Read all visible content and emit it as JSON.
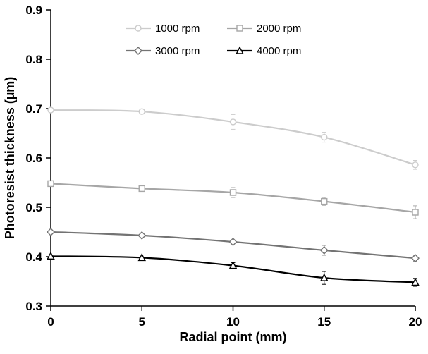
{
  "chart_data": {
    "type": "line",
    "title": "",
    "xlabel": "Radial point (mm)",
    "ylabel": "Photoresist thickness (µm)",
    "x": [
      0,
      5,
      10,
      15,
      20
    ],
    "xlim": [
      0,
      20
    ],
    "ylim": [
      0.3,
      0.9
    ],
    "x_ticks": [
      0,
      5,
      10,
      15,
      20
    ],
    "y_ticks": [
      0.3,
      0.4,
      0.5,
      0.6,
      0.7,
      0.8,
      0.9
    ],
    "x_tick_labels": [
      "0",
      "5",
      "10",
      "15",
      "20"
    ],
    "y_tick_labels": [
      "0.3",
      "0.4",
      "0.5",
      "0.6",
      "0.7",
      "0.8",
      "0.9"
    ],
    "grid": false,
    "legend_position": "top-inside",
    "series": [
      {
        "name": "1000 rpm",
        "marker": "circle",
        "color": "#cccccc",
        "values": [
          0.697,
          0.694,
          0.673,
          0.642,
          0.586
        ],
        "errors": [
          0,
          0,
          0.015,
          0.01,
          0.009
        ]
      },
      {
        "name": "2000 rpm",
        "marker": "square",
        "color": "#a6a6a6",
        "values": [
          0.548,
          0.538,
          0.53,
          0.512,
          0.49
        ],
        "errors": [
          0,
          0,
          0.01,
          0.008,
          0.013
        ]
      },
      {
        "name": "3000 rpm",
        "marker": "diamond",
        "color": "#737373",
        "values": [
          0.45,
          0.443,
          0.43,
          0.413,
          0.397
        ],
        "errors": [
          0,
          0,
          0,
          0.01,
          0.006
        ]
      },
      {
        "name": "4000 rpm",
        "marker": "triangle",
        "color": "#000000",
        "values": [
          0.401,
          0.398,
          0.382,
          0.357,
          0.348
        ],
        "errors": [
          0,
          0,
          0.006,
          0.013,
          0.008
        ]
      }
    ]
  }
}
